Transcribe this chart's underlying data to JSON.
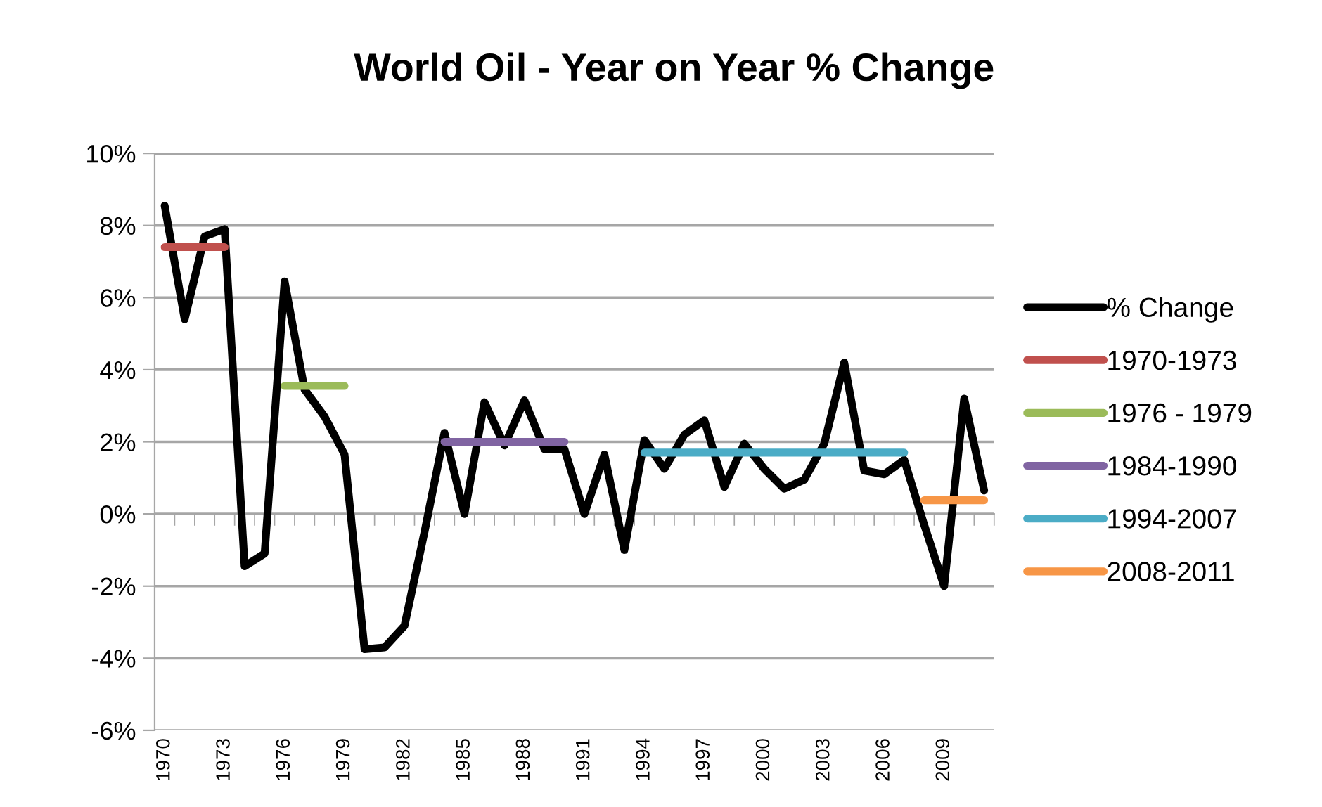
{
  "chart_data": {
    "type": "line",
    "title": "World Oil - Year on Year % Change",
    "categories": [
      "1970",
      null,
      null,
      "1973",
      null,
      null,
      "1976",
      null,
      null,
      "1979",
      null,
      null,
      "1982",
      null,
      null,
      "1985",
      null,
      null,
      "1988",
      null,
      null,
      "1991",
      null,
      null,
      "1994",
      null,
      null,
      "1997",
      null,
      null,
      "2000",
      null,
      null,
      "2003",
      null,
      null,
      "2006",
      null,
      null,
      "2009",
      null,
      null
    ],
    "series": [
      {
        "name": "% Change",
        "color": "#000000",
        "values": [
          8.55,
          5.4,
          7.7,
          7.9,
          -1.45,
          -1.1,
          6.45,
          3.45,
          2.7,
          1.65,
          -3.75,
          -3.7,
          -3.1,
          -0.5,
          2.25,
          0.0,
          3.1,
          1.9,
          3.15,
          1.8,
          1.8,
          0.0,
          1.65,
          -1.0,
          2.05,
          1.25,
          2.2,
          2.6,
          0.75,
          1.95,
          1.25,
          0.7,
          0.95,
          1.95,
          4.2,
          1.2,
          1.1,
          1.5,
          -0.3,
          -2.0,
          3.2,
          0.65
        ]
      },
      {
        "name": "1970-1973",
        "color": "#c0504d",
        "values": [
          7.4,
          7.4,
          7.4,
          7.4,
          null,
          null,
          null,
          null,
          null,
          null,
          null,
          null,
          null,
          null,
          null,
          null,
          null,
          null,
          null,
          null,
          null,
          null,
          null,
          null,
          null,
          null,
          null,
          null,
          null,
          null,
          null,
          null,
          null,
          null,
          null,
          null,
          null,
          null,
          null,
          null,
          null,
          null
        ]
      },
      {
        "name": "1976 - 1979",
        "color": "#9bbb59",
        "values": [
          null,
          null,
          null,
          null,
          null,
          null,
          3.55,
          3.55,
          3.55,
          3.55,
          null,
          null,
          null,
          null,
          null,
          null,
          null,
          null,
          null,
          null,
          null,
          null,
          null,
          null,
          null,
          null,
          null,
          null,
          null,
          null,
          null,
          null,
          null,
          null,
          null,
          null,
          null,
          null,
          null,
          null,
          null,
          null
        ]
      },
      {
        "name": "1984-1990",
        "color": "#8064a2",
        "values": [
          null,
          null,
          null,
          null,
          null,
          null,
          null,
          null,
          null,
          null,
          null,
          null,
          null,
          null,
          2.0,
          2.0,
          2.0,
          2.0,
          2.0,
          2.0,
          2.0,
          null,
          null,
          null,
          null,
          null,
          null,
          null,
          null,
          null,
          null,
          null,
          null,
          null,
          null,
          null,
          null,
          null,
          null,
          null,
          null,
          null
        ]
      },
      {
        "name": "1994-2007",
        "color": "#4bacc6",
        "values": [
          null,
          null,
          null,
          null,
          null,
          null,
          null,
          null,
          null,
          null,
          null,
          null,
          null,
          null,
          null,
          null,
          null,
          null,
          null,
          null,
          null,
          null,
          null,
          null,
          1.7,
          1.7,
          1.7,
          1.7,
          1.7,
          1.7,
          1.7,
          1.7,
          1.7,
          1.7,
          1.7,
          1.7,
          1.7,
          1.7,
          null,
          null,
          null,
          null
        ]
      },
      {
        "name": "2008-2011",
        "color": "#f79646",
        "values": [
          null,
          null,
          null,
          null,
          null,
          null,
          null,
          null,
          null,
          null,
          null,
          null,
          null,
          null,
          null,
          null,
          null,
          null,
          null,
          null,
          null,
          null,
          null,
          null,
          null,
          null,
          null,
          null,
          null,
          null,
          null,
          null,
          null,
          null,
          null,
          null,
          null,
          null,
          0.38,
          0.38,
          0.38,
          0.38
        ]
      }
    ],
    "ylim": [
      -6,
      10
    ],
    "yticks": [
      {
        "value": -6,
        "label": "-6%"
      },
      {
        "value": -4,
        "label": "-4%"
      },
      {
        "value": -2,
        "label": "-2%"
      },
      {
        "value": 0,
        "label": "0%"
      },
      {
        "value": 2,
        "label": "2%"
      },
      {
        "value": 4,
        "label": "4%"
      },
      {
        "value": 6,
        "label": "6%"
      },
      {
        "value": 8,
        "label": "8%"
      },
      {
        "value": 10,
        "label": "10%"
      }
    ],
    "grid": "y",
    "legend": "right",
    "marker": "none",
    "line_style": "solid"
  }
}
